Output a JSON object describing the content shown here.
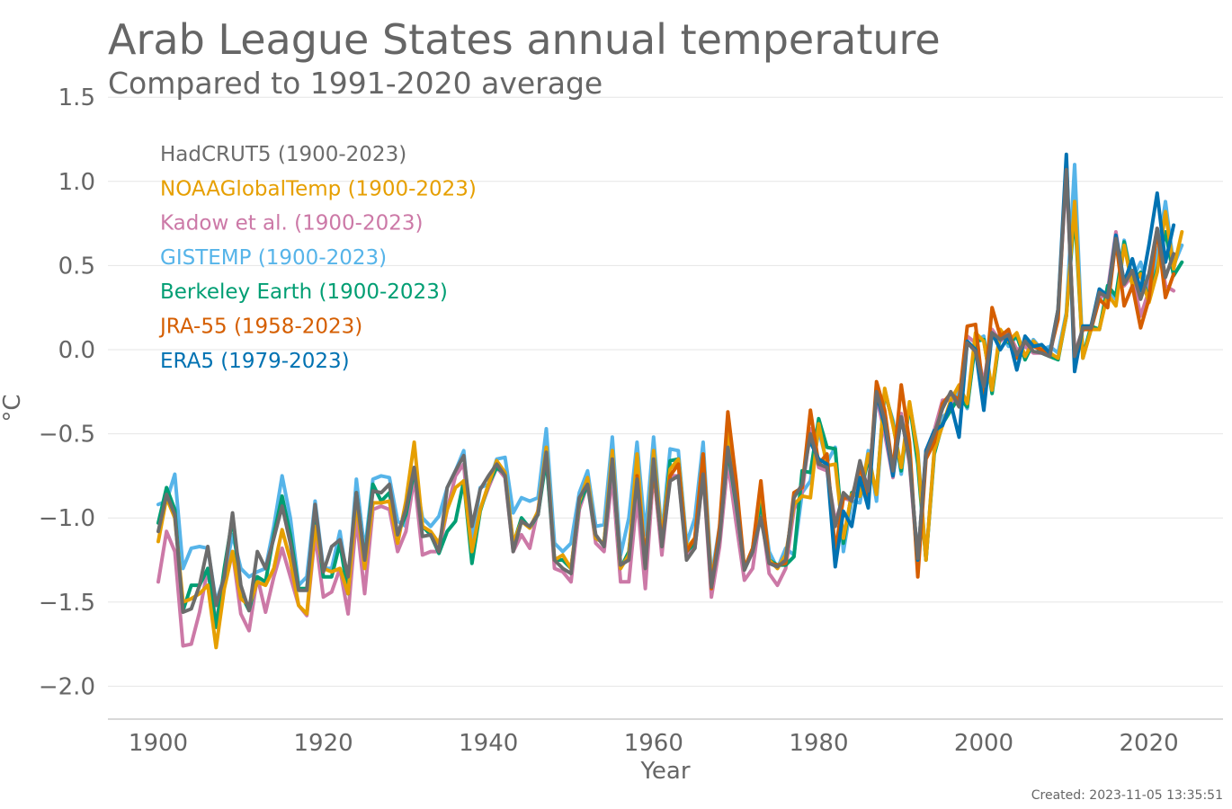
{
  "chart_data": {
    "type": "line",
    "title": "Arab League States annual temperature",
    "subtitle": "Compared to 1991-2020 average",
    "xlabel": "Year",
    "ylabel": "°C",
    "xlim": [
      1894,
      2030
    ],
    "ylim": [
      -2.2,
      1.5
    ],
    "xticks": [
      1900,
      1920,
      1940,
      1960,
      1980,
      2000,
      2020
    ],
    "yticks": [
      1.5,
      1.0,
      0.5,
      0.0,
      -0.5,
      -1.0,
      -1.5,
      -2.0
    ],
    "ytick_labels": [
      "1.5",
      "1.0",
      "0.5",
      "0.0",
      "−0.5",
      "−1.0",
      "−1.5",
      "−2.0"
    ],
    "grid": true,
    "legend_position": "top-left",
    "created": "Created: 2023-11-05 13:35:51",
    "series": [
      {
        "name": "GISTEMP (1900-2023)",
        "color": "#56B4E9",
        "start": 1900,
        "values": [
          -0.92,
          -0.9,
          -0.74,
          -1.3,
          -1.18,
          -1.17,
          -1.18,
          -1.5,
          -1.35,
          -1.1,
          -1.3,
          -1.35,
          -1.32,
          -1.3,
          -1.05,
          -0.75,
          -1.0,
          -1.4,
          -1.35,
          -0.9,
          -1.3,
          -1.3,
          -1.08,
          -1.4,
          -0.77,
          -1.2,
          -0.77,
          -0.75,
          -0.76,
          -1.02,
          -1.05,
          -0.72,
          -1.0,
          -1.05,
          -0.99,
          -0.82,
          -0.72,
          -0.6,
          -1.15,
          -0.82,
          -0.8,
          -0.65,
          -0.64,
          -0.97,
          -0.88,
          -0.9,
          -0.88,
          -0.47,
          -1.15,
          -1.2,
          -1.15,
          -0.85,
          -0.72,
          -1.05,
          -1.04,
          -0.52,
          -1.22,
          -1.0,
          -0.55,
          -1.1,
          -0.52,
          -1.1,
          -0.59,
          -0.6,
          -1.15,
          -1.0,
          -0.55,
          -1.35,
          -1.05,
          -0.55,
          -0.88,
          -1.3,
          -1.2,
          -0.84,
          -1.2,
          -1.3,
          -1.18,
          -1.22,
          -0.85,
          -0.78,
          -0.48,
          -0.67,
          -0.58,
          -1.2,
          -0.9,
          -0.91,
          -0.6,
          -0.9,
          -0.26,
          -0.42,
          -0.74,
          -0.32,
          -0.6,
          -1.25,
          -0.6,
          -0.4,
          -0.36,
          -0.25,
          -0.35,
          0.05,
          0.08,
          -0.25,
          0.1,
          0.02,
          0.08,
          -0.05,
          0.06,
          0.0,
          0.02,
          -0.02,
          0.22,
          1.1,
          -0.05,
          0.12,
          0.12,
          0.36,
          0.3,
          0.65,
          0.42,
          0.52,
          0.35,
          0.55,
          0.88,
          0.5,
          0.62
        ]
      },
      {
        "name": "Kadow et al. (1900-2023)",
        "color": "#CC79A7",
        "start": 1900,
        "values": [
          -1.38,
          -1.08,
          -1.2,
          -1.76,
          -1.75,
          -1.56,
          -1.3,
          -1.62,
          -1.4,
          -1.2,
          -1.57,
          -1.67,
          -1.35,
          -1.56,
          -1.35,
          -1.18,
          -1.35,
          -1.52,
          -1.58,
          -1.1,
          -1.47,
          -1.44,
          -1.3,
          -1.57,
          -1.0,
          -1.45,
          -0.95,
          -0.93,
          -0.95,
          -1.2,
          -1.08,
          -0.76,
          -1.22,
          -1.2,
          -1.2,
          -0.95,
          -0.75,
          -0.68,
          -1.22,
          -0.95,
          -0.82,
          -0.7,
          -0.76,
          -1.2,
          -1.1,
          -1.18,
          -0.95,
          -0.62,
          -1.3,
          -1.32,
          -1.38,
          -0.95,
          -0.8,
          -1.15,
          -1.2,
          -0.75,
          -1.38,
          -1.38,
          -0.88,
          -1.42,
          -0.72,
          -1.22,
          -0.75,
          -0.75,
          -1.22,
          -1.18,
          -0.73,
          -1.47,
          -1.17,
          -0.67,
          -1.03,
          -1.37,
          -1.3,
          -0.95,
          -1.33,
          -1.4,
          -1.3,
          -0.95,
          -0.85,
          -0.47,
          -0.7,
          -0.72,
          -1.02,
          -0.88,
          -0.9,
          -0.7,
          -0.82,
          -0.28,
          -0.5,
          -0.76,
          -0.38,
          -0.68,
          -1.28,
          -0.6,
          -0.48,
          -0.3,
          -0.3,
          -0.33,
          0.08,
          0.04,
          -0.2,
          0.12,
          0.05,
          0.1,
          0.0,
          0.02,
          -0.02,
          -0.02,
          -0.04,
          0.22,
          1.05,
          -0.02,
          0.12,
          0.14,
          0.3,
          0.35,
          0.7,
          0.38,
          0.44,
          0.2,
          0.35,
          0.72,
          0.38,
          0.35
        ]
      },
      {
        "name": "Berkeley Earth (1900-2023)",
        "color": "#009E73",
        "start": 1900,
        "values": [
          -1.03,
          -0.82,
          -0.95,
          -1.55,
          -1.4,
          -1.4,
          -1.3,
          -1.65,
          -1.3,
          -1.0,
          -1.45,
          -1.55,
          -1.35,
          -1.38,
          -1.1,
          -0.87,
          -1.1,
          -1.42,
          -1.42,
          -0.98,
          -1.35,
          -1.35,
          -1.15,
          -1.45,
          -0.85,
          -1.25,
          -0.8,
          -0.9,
          -0.85,
          -1.1,
          -0.98,
          -0.72,
          -1.05,
          -1.1,
          -1.21,
          -1.08,
          -1.02,
          -0.78,
          -1.27,
          -0.96,
          -0.8,
          -0.7,
          -0.74,
          -1.16,
          -1.0,
          -1.06,
          -0.98,
          -0.65,
          -1.25,
          -1.25,
          -1.3,
          -0.92,
          -0.8,
          -1.12,
          -1.15,
          -0.65,
          -1.3,
          -1.2,
          -0.75,
          -1.25,
          -0.7,
          -1.15,
          -0.66,
          -0.65,
          -1.2,
          -1.15,
          -0.7,
          -1.38,
          -1.1,
          -0.6,
          -0.92,
          -1.3,
          -1.2,
          -0.9,
          -1.25,
          -1.28,
          -1.28,
          -1.23,
          -0.72,
          -0.73,
          -0.41,
          -0.58,
          -0.59,
          -1.15,
          -0.85,
          -0.87,
          -0.65,
          -0.85,
          -0.24,
          -0.44,
          -0.72,
          -0.32,
          -0.68,
          -1.25,
          -0.62,
          -0.44,
          -0.36,
          -0.28,
          -0.34,
          0.05,
          0.06,
          -0.26,
          0.1,
          0.04,
          0.08,
          -0.06,
          0.04,
          -0.02,
          -0.04,
          -0.06,
          0.2,
          0.82,
          -0.04,
          0.14,
          0.12,
          0.38,
          0.32,
          0.64,
          0.4,
          0.46,
          0.3,
          0.48,
          0.7,
          0.44,
          0.52
        ]
      },
      {
        "name": "NOAAGlobalTemp (1900-2023)",
        "color": "#E69F00",
        "start": 1900,
        "values": [
          -1.14,
          -0.88,
          -1.0,
          -1.5,
          -1.48,
          -1.45,
          -1.4,
          -1.77,
          -1.42,
          -1.2,
          -1.48,
          -1.52,
          -1.38,
          -1.4,
          -1.3,
          -1.07,
          -1.25,
          -1.52,
          -1.57,
          -1.05,
          -1.3,
          -1.32,
          -1.3,
          -1.45,
          -0.9,
          -1.3,
          -0.91,
          -0.91,
          -0.9,
          -1.15,
          -0.9,
          -0.55,
          -1.05,
          -1.08,
          -1.15,
          -0.95,
          -0.82,
          -0.78,
          -1.2,
          -0.95,
          -0.8,
          -0.66,
          -0.73,
          -1.15,
          -1.02,
          -1.06,
          -0.96,
          -0.58,
          -1.25,
          -1.22,
          -1.3,
          -0.9,
          -0.76,
          -1.12,
          -1.15,
          -0.6,
          -1.3,
          -1.22,
          -0.62,
          -1.28,
          -0.6,
          -1.12,
          -0.71,
          -0.65,
          -1.18,
          -1.12,
          -0.62,
          -1.38,
          -1.08,
          -0.48,
          -0.85,
          -1.3,
          -1.18,
          -0.82,
          -1.25,
          -1.3,
          -1.22,
          -0.92,
          -0.87,
          -0.88,
          -0.44,
          -0.69,
          -0.68,
          -1.12,
          -0.86,
          -0.87,
          -0.62,
          -0.86,
          -0.23,
          -0.45,
          -0.7,
          -0.31,
          -0.62,
          -1.25,
          -0.6,
          -0.45,
          -0.3,
          -0.21,
          -0.32,
          0.1,
          0.05,
          -0.24,
          0.12,
          0.05,
          0.1,
          -0.04,
          0.05,
          0.0,
          -0.02,
          -0.05,
          0.2,
          0.88,
          -0.05,
          0.12,
          0.12,
          0.33,
          0.26,
          0.62,
          0.38,
          0.45,
          0.28,
          0.46,
          0.82,
          0.48,
          0.7
        ]
      },
      {
        "name": "JRA-55 (1958-2023)",
        "color": "#D55E00",
        "start": 1958,
        "values": [
          -0.75,
          -1.25,
          -0.7,
          -1.15,
          -0.75,
          -0.68,
          -1.2,
          -1.12,
          -0.62,
          -1.42,
          -1.05,
          -0.37,
          -0.78,
          -1.3,
          -1.18,
          -0.78,
          -1.27,
          -1.28,
          -1.27,
          -0.85,
          -0.82,
          -0.36,
          -0.68,
          -0.62,
          -1.2,
          -0.88,
          -0.88,
          -0.7,
          -0.88,
          -0.19,
          -0.36,
          -0.72,
          -0.21,
          -0.55,
          -1.35,
          -0.65,
          -0.55,
          -0.32,
          -0.26,
          -0.3,
          0.14,
          0.15,
          -0.28,
          0.25,
          0.08,
          0.12,
          -0.05,
          0.05,
          0.02,
          0.0,
          -0.02,
          0.18,
          1.12,
          -0.05,
          0.12,
          0.12,
          0.3,
          0.25,
          0.65,
          0.26,
          0.38,
          0.13,
          0.3,
          0.72,
          0.31,
          0.45
        ]
      },
      {
        "name": "ERA5 (1979-2023)",
        "color": "#0072B2",
        "start": 1979,
        "values": [
          -0.55,
          -0.65,
          -0.68,
          -1.29,
          -0.96,
          -1.05,
          -0.76,
          -0.94,
          -0.26,
          -0.45,
          -0.75,
          -0.4,
          -0.65,
          -1.25,
          -0.6,
          -0.48,
          -0.45,
          -0.32,
          -0.52,
          0.05,
          0.0,
          -0.36,
          0.1,
          0.0,
          0.08,
          -0.12,
          0.08,
          0.02,
          0.03,
          -0.02,
          0.24,
          1.16,
          -0.13,
          0.14,
          0.14,
          0.36,
          0.32,
          0.68,
          0.4,
          0.54,
          0.35,
          0.62,
          0.93,
          0.52,
          0.74
        ]
      },
      {
        "name": "HadCRUT5 (1900-2023)",
        "color": "#6c6c6c",
        "start": 1900,
        "values": [
          -1.08,
          -0.86,
          -0.98,
          -1.56,
          -1.54,
          -1.4,
          -1.17,
          -1.52,
          -1.35,
          -0.97,
          -1.4,
          -1.55,
          -1.2,
          -1.3,
          -1.12,
          -0.93,
          -1.15,
          -1.43,
          -1.43,
          -0.92,
          -1.32,
          -1.17,
          -1.13,
          -1.35,
          -0.85,
          -1.25,
          -0.84,
          -0.85,
          -0.8,
          -1.1,
          -0.95,
          -0.7,
          -1.11,
          -1.1,
          -1.2,
          -0.82,
          -0.72,
          -0.63,
          -1.05,
          -0.83,
          -0.75,
          -0.68,
          -0.75,
          -1.2,
          -1.02,
          -1.05,
          -0.98,
          -0.61,
          -1.25,
          -1.3,
          -1.33,
          -0.88,
          -0.8,
          -1.1,
          -1.17,
          -0.65,
          -1.28,
          -1.25,
          -0.77,
          -1.3,
          -0.65,
          -1.17,
          -0.78,
          -0.75,
          -1.25,
          -1.18,
          -0.74,
          -1.41,
          -1.12,
          -0.58,
          -0.9,
          -1.31,
          -1.2,
          -1.0,
          -1.27,
          -1.29,
          -1.25,
          -0.88,
          -0.8,
          -0.5,
          -0.68,
          -0.7,
          -1.05,
          -0.85,
          -0.9,
          -0.66,
          -0.84,
          -0.25,
          -0.42,
          -0.72,
          -0.4,
          -0.66,
          -1.24,
          -0.62,
          -0.5,
          -0.35,
          -0.25,
          -0.34,
          0.04,
          -0.01,
          -0.22,
          0.1,
          0.06,
          0.09,
          -0.03,
          0.05,
          -0.01,
          -0.02,
          -0.04,
          0.24,
          1.07,
          -0.04,
          0.13,
          0.13,
          0.34,
          0.31,
          0.66,
          0.39,
          0.47,
          0.3,
          0.45,
          0.72,
          0.43,
          0.57
        ]
      }
    ]
  }
}
